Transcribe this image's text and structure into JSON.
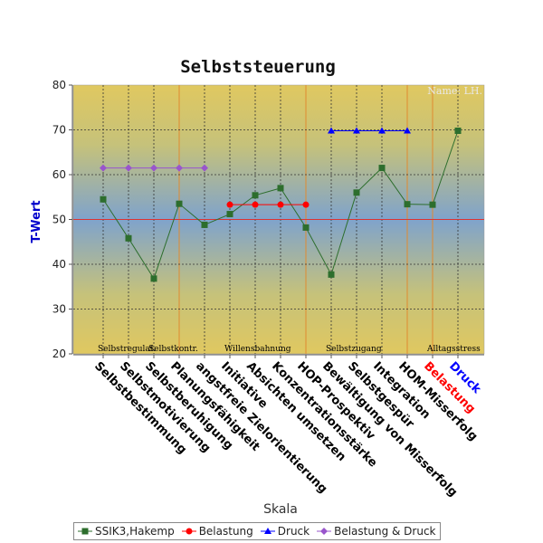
{
  "chart_data": {
    "type": "line",
    "title": "Selbststeuerung",
    "xlabel": "Skala",
    "ylabel": "T-Wert",
    "ylim": [
      20,
      80
    ],
    "yticks": [
      20,
      30,
      40,
      50,
      60,
      70,
      80
    ],
    "reference_line": 50,
    "watermark": "Name: LH.",
    "grid": true,
    "legend_position": "bottom",
    "categories": [
      "Selbstbestimmung",
      "Selbstmotivierung",
      "Selbstberuhigung",
      "Planungsfähigkeit",
      "angstfreie Zielorientierung",
      "Initiative",
      "Absichten umsetzen",
      "Konzentrationsstärke",
      "HOP-Prospektiv",
      "Bewältigung von Misserfolg",
      "Selbstgespür",
      "Integration",
      "HOM-Misserfolg",
      "Belastung",
      "Druck"
    ],
    "category_colors": {
      "Belastung": "#ff0000",
      "Druck": "#0000ff"
    },
    "group_labels": [
      {
        "text": "Selbstregulat.",
        "start": 0,
        "end": 2
      },
      {
        "text": "Selbstkontr.",
        "start": 2,
        "end": 4
      },
      {
        "text": "Willensbahnung",
        "start": 5,
        "end": 8
      },
      {
        "text": "Selbstzugang",
        "start": 9,
        "end": 11
      },
      {
        "text": "Alltagsstress",
        "start": 13,
        "end": 14
      }
    ],
    "series": [
      {
        "name": "SSIK3,Hakemp",
        "color": "#2d6e2d",
        "marker": "square",
        "values": [
          54.5,
          45.8,
          36.8,
          53.5,
          48.8,
          51.2,
          55.4,
          57.0,
          48.2,
          37.7,
          56.0,
          61.5,
          53.4,
          53.3,
          69.8
        ]
      },
      {
        "name": "Belastung",
        "color": "#ff0000",
        "marker": "circle",
        "values": [
          null,
          null,
          null,
          null,
          null,
          53.3,
          53.3,
          53.3,
          53.3,
          null,
          null,
          null,
          null,
          null,
          null
        ]
      },
      {
        "name": "Druck",
        "color": "#0000ff",
        "marker": "triangle",
        "values": [
          null,
          null,
          null,
          null,
          null,
          null,
          null,
          null,
          null,
          69.8,
          69.8,
          69.8,
          69.8,
          null,
          null
        ]
      },
      {
        "name": "Belastung & Druck",
        "color": "#9955cc",
        "marker": "diamond",
        "values": [
          61.5,
          61.5,
          61.5,
          61.5,
          61.5,
          null,
          null,
          null,
          null,
          null,
          null,
          null,
          null,
          null,
          null
        ]
      }
    ]
  }
}
